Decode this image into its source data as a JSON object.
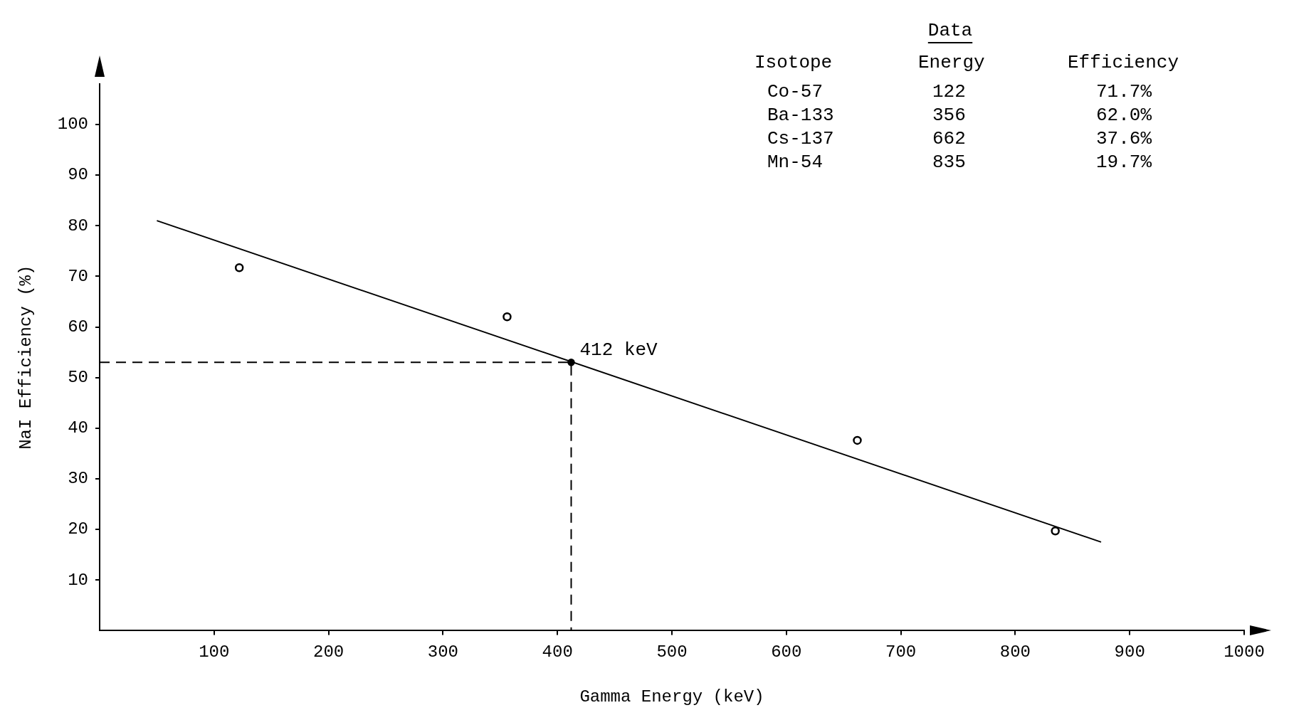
{
  "chart_data": {
    "type": "scatter",
    "xlabel": "Gamma Energy (keV)",
    "ylabel": "NaI Efficiency (%)",
    "xlim": [
      0,
      1000
    ],
    "ylim": [
      0,
      108
    ],
    "xticks": [
      100,
      200,
      300,
      400,
      500,
      600,
      700,
      800,
      900,
      1000
    ],
    "yticks": [
      10,
      20,
      30,
      40,
      50,
      60,
      70,
      80,
      90,
      100
    ],
    "grid": false,
    "legend": false,
    "series": [
      {
        "type": "scatter",
        "color": "#000000",
        "marker": "circle",
        "x": [
          122,
          356,
          662,
          835
        ],
        "values": [
          71.7,
          62.0,
          37.6,
          19.7
        ]
      },
      {
        "type": "line",
        "color": "#000000",
        "marker": "none",
        "line_style": "solid",
        "x": [
          50,
          875
        ],
        "values": [
          81,
          17.5
        ]
      },
      {
        "type": "line",
        "color": "#000000",
        "marker": "none",
        "line_style": "dashed",
        "x": [
          0,
          412,
          412
        ],
        "values": [
          53,
          53,
          0
        ]
      },
      {
        "type": "scatter",
        "color": "#000000",
        "marker": "circle",
        "x": [
          412
        ],
        "values": [
          53
        ]
      }
    ],
    "annotations": [
      "Data",
      "Isotope",
      "Energy",
      "Efficiency",
      "Co-57",
      "122",
      "71.7%",
      "Ba-133",
      "356",
      "62.0%",
      "Cs-137",
      "662",
      "37.6%",
      "Mn-54",
      "835",
      "19.7%",
      {
        "text": "412 keV",
        "x": 412,
        "y": 53
      }
    ]
  }
}
